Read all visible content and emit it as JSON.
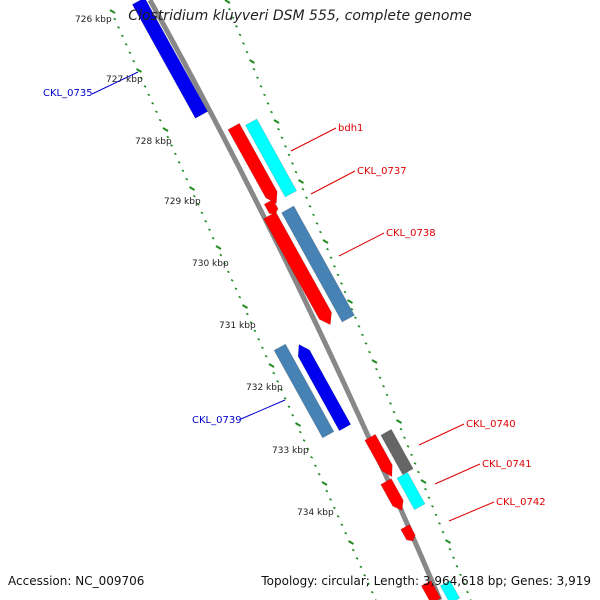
{
  "title": "Clostridium kluyveri DSM 555, complete genome",
  "footer": {
    "accession": "Accession: NC_009706",
    "summary": "Topology: circular; Length: 3,964,618 bp; Genes: 3,919"
  },
  "scale": {
    "tick_labels": [
      "726 kbp",
      "727 kbp",
      "728 kbp",
      "729 kbp",
      "730 kbp",
      "731 kbp",
      "732 kbp",
      "733 kbp",
      "734 kbp"
    ],
    "tick_color": "#228b22"
  },
  "genes": [
    {
      "name": "CKL_0735",
      "color": "#0000ee",
      "label_color": "#0000cc",
      "strand": "reverse"
    },
    {
      "name": "bdh1",
      "color": "#ff0000",
      "label_color": "#dd0000",
      "strand": "forward"
    },
    {
      "name": "CKL_0737",
      "color": "#00ffff",
      "label_color": "#dd0000",
      "strand": "forward"
    },
    {
      "name": "CKL_0738",
      "color": "#4682b4",
      "label_color": "#dd0000",
      "strand": "forward"
    },
    {
      "name": "CKL_0739",
      "color": "#4682b4",
      "label_color": "#0000cc",
      "strand": "reverse"
    },
    {
      "name": "CKL_0740",
      "color": "#ff0000",
      "label_color": "#dd0000",
      "strand": "forward"
    },
    {
      "name": "CKL_0741",
      "color": "#666666",
      "label_color": "#dd0000",
      "strand": "forward"
    },
    {
      "name": "CKL_0742",
      "color": "#00ffff",
      "label_color": "#dd0000",
      "strand": "forward"
    }
  ],
  "colors": {
    "backbone": "#888888",
    "red": "#ff0000",
    "cyan": "#00ffff",
    "steelblue": "#4682b4",
    "blue": "#0000ee",
    "gray": "#666666"
  }
}
